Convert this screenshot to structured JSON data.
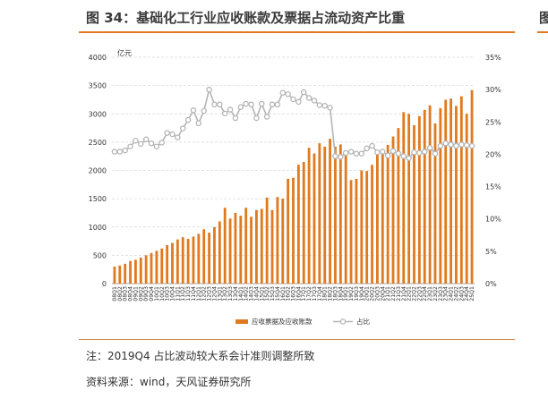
{
  "figure": {
    "title": "图 34：基础化工行业应收账款及票据占流动资产比重",
    "next_title_fragment": "图",
    "note": "注：2019Q4 占比波动较大系会计准则调整所致",
    "source": "资料来源：wind，天风证券研究所"
  },
  "colors": {
    "bar": "#e07a1f",
    "line": "#b5b5b5",
    "rule": "#e07a1f"
  },
  "chart_data": {
    "type": "bar",
    "left_unit": "亿元",
    "ylim": [
      0,
      4000
    ],
    "y_ticks": [
      0,
      500,
      1000,
      1500,
      2000,
      2500,
      3000,
      3500,
      4000
    ],
    "y2lim": [
      0,
      35
    ],
    "y2_ticks": [
      "0%",
      "5%",
      "10%",
      "15%",
      "20%",
      "25%",
      "30%",
      "35%"
    ],
    "grid": true,
    "legend_position": "bottom",
    "categories": [
      "08Q1",
      "08Q2",
      "08Q3",
      "08Q4",
      "09Q1",
      "09Q2",
      "09Q3",
      "09Q4",
      "10Q1",
      "10Q2",
      "10Q3",
      "10Q4",
      "11Q1",
      "11Q2",
      "11Q3",
      "11Q4",
      "12Q1",
      "12Q2",
      "12Q3",
      "12Q4",
      "13Q1",
      "13Q2",
      "13Q3",
      "13Q4",
      "14Q1",
      "14Q2",
      "14Q3",
      "14Q4",
      "15Q1",
      "15Q2",
      "15Q3",
      "15Q4",
      "16Q1",
      "16Q2",
      "16Q3",
      "16Q4",
      "17Q1",
      "17Q2",
      "17Q3",
      "17Q4",
      "18Q1",
      "18Q2",
      "18Q3",
      "18Q4",
      "19Q1",
      "19Q2",
      "19Q3",
      "19Q4",
      "20Q1",
      "20Q2",
      "20Q3",
      "20Q4",
      "21Q1",
      "21Q2",
      "21Q3",
      "21Q4",
      "22Q1",
      "22Q2",
      "22Q3",
      "22Q4",
      "23Q1",
      "23Q2",
      "23Q3",
      "23Q4",
      "24Q1",
      "24Q2",
      "24Q3",
      "24Q4",
      "25Q1"
    ],
    "series": [
      {
        "name": "应收票据及应收账款",
        "type": "bar",
        "axis": "left",
        "values": [
          300,
          320,
          350,
          400,
          420,
          460,
          500,
          540,
          580,
          620,
          680,
          720,
          780,
          820,
          790,
          830,
          880,
          960,
          900,
          1000,
          1100,
          1340,
          1150,
          1250,
          1200,
          1340,
          1180,
          1300,
          1320,
          1520,
          1300,
          1530,
          1500,
          1850,
          1870,
          2100,
          2150,
          2400,
          2300,
          2480,
          2420,
          2560,
          2420,
          2460,
          2350,
          1830,
          1850,
          2000,
          1990,
          2100,
          2300,
          2350,
          2450,
          2600,
          2750,
          3030,
          3000,
          2800,
          2960,
          3070,
          3150,
          2830,
          3100,
          3250,
          3270,
          3140,
          3310,
          3000,
          3420
        ]
      },
      {
        "name": "占比",
        "type": "line",
        "axis": "right",
        "values": [
          20.4,
          20.4,
          20.6,
          21.2,
          22.1,
          21.6,
          22.3,
          21.7,
          21.2,
          21.8,
          23.3,
          23.1,
          22.6,
          24.0,
          25.3,
          26.8,
          24.8,
          26.7,
          30.0,
          27.7,
          27.7,
          26.3,
          26.9,
          25.6,
          27.3,
          27.8,
          27.7,
          25.6,
          27.8,
          25.8,
          27.7,
          27.7,
          29.5,
          29.3,
          28.5,
          28.1,
          29.6,
          28.7,
          28.3,
          27.6,
          27.5,
          27.2,
          19.7,
          19.6,
          20.2,
          20.4,
          20.1,
          20.1,
          20.9,
          21.3,
          20.3,
          20.4,
          19.8,
          20.5,
          20.1,
          19.7,
          19.4,
          20.3,
          20.2,
          20.4,
          21.0,
          20.1,
          21.3,
          21.7,
          21.5,
          21.3,
          21.5,
          21.4,
          21.3
        ]
      }
    ]
  }
}
